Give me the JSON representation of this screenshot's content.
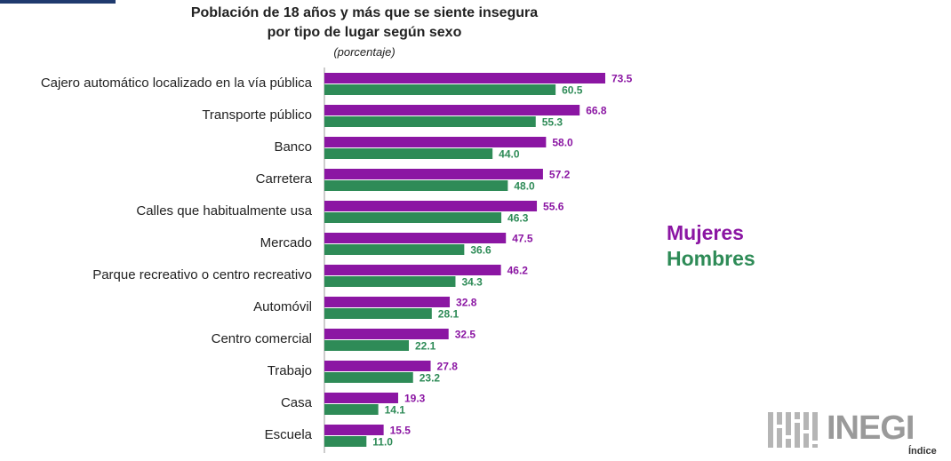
{
  "chart_data": {
    "type": "bar",
    "orientation": "horizontal",
    "title_line1": "Población de 18 años y más que se siente insegura",
    "title_line2": "por tipo de lugar según sexo",
    "subtitle": "(porcentaje)",
    "categories": [
      "Cajero automático localizado en la vía pública",
      "Transporte público",
      "Banco",
      "Carretera",
      "Calles que habitualmente usa",
      "Mercado",
      "Parque recreativo o centro recreativo",
      "Automóvil",
      "Centro comercial",
      "Trabajo",
      "Casa",
      "Escuela"
    ],
    "series": [
      {
        "name": "Mujeres",
        "color": "#8b16a3",
        "values": [
          73.5,
          66.8,
          58.0,
          57.2,
          55.6,
          47.5,
          46.2,
          32.8,
          32.5,
          27.8,
          19.3,
          15.5
        ]
      },
      {
        "name": "Hombres",
        "color": "#2e8b57",
        "values": [
          60.5,
          55.3,
          44.0,
          48.0,
          46.3,
          36.6,
          34.3,
          28.1,
          22.1,
          23.2,
          14.1,
          11.0
        ]
      }
    ],
    "xlim": [
      0,
      100
    ],
    "grid": false,
    "legend_position": "right"
  },
  "legend": {
    "mujeres": "Mujeres",
    "hombres": "Hombres"
  },
  "logo": {
    "text": "INEGI",
    "link": "Índice"
  }
}
